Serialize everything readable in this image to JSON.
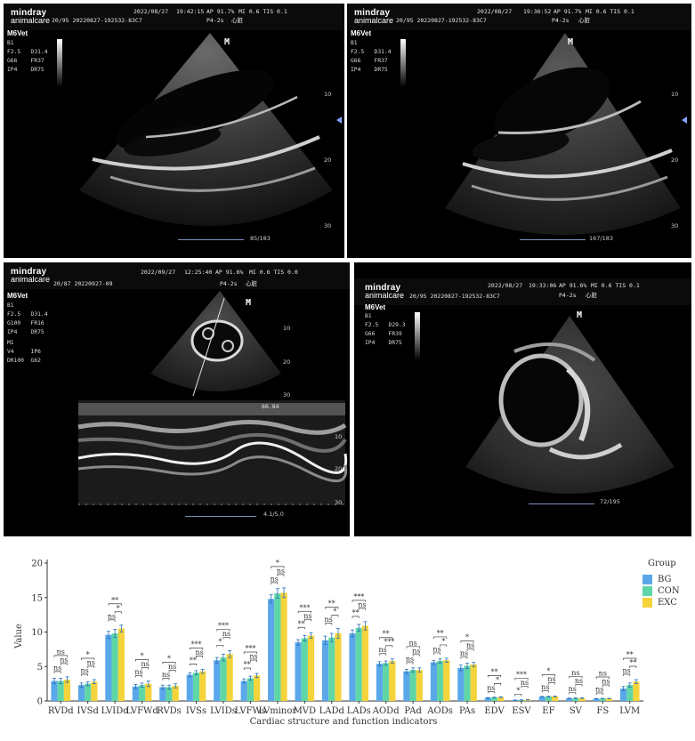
{
  "panels": [
    {
      "id": "A",
      "brand_top": "mindray",
      "brand_bottom": "animalcare",
      "header_id": "20/95 20220827-192532-83C7",
      "date": "2022/08/27",
      "time": "19:42:15",
      "power": "AP 91.7%",
      "indices": "MI 0.6 TIS 0.1",
      "probe": "P4-2s",
      "mode": "心脏",
      "app": "M6Vet",
      "mode_label": "B1",
      "params": [
        "F2.5   D31.4",
        "G66    FR37",
        "IP4    DR75"
      ],
      "counter": "85/183",
      "depths": [
        "10",
        "20",
        "30"
      ],
      "marker": "M"
    },
    {
      "id": "B",
      "brand_top": "mindray",
      "brand_bottom": "animalcare",
      "header_id": "20/95 20220827-192532-83C7",
      "date": "2022/08/27",
      "time": "19:36:52",
      "power": "AP 91.7%",
      "indices": "MI 0.6 TIS 0.1",
      "probe": "P4-2s",
      "mode": "心脏",
      "app": "M6Vet",
      "mode_label": "B1",
      "params": [
        "F2.5   D31.4",
        "G66    FR37",
        "IP4    DR75"
      ],
      "counter": "167/183",
      "depths": [
        "10",
        "20",
        "30"
      ],
      "marker": "M"
    },
    {
      "id": "C",
      "brand_top": "mindray",
      "brand_bottom": "animalcare",
      "header_id": "20/87 20220927-09",
      "date": "2022/09/27",
      "time": "12:25:40",
      "power": "AP 91.6%",
      "indices": "MI 0.6 TIS 0.0",
      "probe": "P4-2s",
      "mode": "心脏",
      "app": "M6Vet",
      "mode_label": "B1",
      "params": [
        "F2.5   D31.4",
        "G100   FR16",
        "IP4    DR75"
      ],
      "mm_label": "M1",
      "mm_params": [
        "V4     IP6",
        "DR100  G62"
      ],
      "counter": "4.1/5.0",
      "depths": [
        "10",
        "20",
        "30"
      ],
      "mm_depths": [
        "10",
        "20",
        "30"
      ],
      "sweep_readout": "66.84",
      "marker": "M"
    },
    {
      "id": "D",
      "brand_top": "mindray",
      "brand_bottom": "animalcare",
      "header_id": "20/95 20220827-192532-83C7",
      "date": "2022/08/27",
      "time": "19:33:06",
      "power": "AP 91.6%",
      "indices": "MI 0.6 TIS 0.1",
      "probe": "P4-2s",
      "mode": "心脏",
      "app": "M6Vet",
      "mode_label": "B1",
      "params": [
        "F2.5   D29.3",
        "G66    FR39",
        "IP4    DR75"
      ],
      "counter": "72/195",
      "marker": "M"
    }
  ],
  "chart_data": {
    "type": "bar",
    "title": "",
    "xlabel": "Cardiac structure and function indicators",
    "ylabel": "Value",
    "ylim": [
      0,
      20
    ],
    "yticks": [
      0,
      5,
      10,
      15,
      20
    ],
    "legend_title": "Group",
    "legend_position": "top-right",
    "categories": [
      "RVDd",
      "IVSd",
      "LVIDd",
      "LVFWd",
      "RVDs",
      "IVSs",
      "LVIDs",
      "LVFWs",
      "LVminor",
      "MVD",
      "LADd",
      "LADs",
      "AODd",
      "PAd",
      "AODs",
      "PAs",
      "EDV",
      "ESV",
      "EF",
      "SV",
      "FS",
      "LVM"
    ],
    "series": [
      {
        "name": "BG",
        "color": "#5aa7ea",
        "values": [
          2.9,
          2.3,
          9.6,
          2.1,
          2.0,
          3.8,
          5.9,
          2.9,
          14.8,
          8.5,
          8.8,
          9.8,
          5.4,
          4.3,
          5.6,
          4.8,
          0.45,
          0.12,
          0.62,
          0.38,
          0.33,
          1.8
        ],
        "errors": [
          0.4,
          0.3,
          0.5,
          0.3,
          0.3,
          0.3,
          0.4,
          0.3,
          0.6,
          0.4,
          0.6,
          0.5,
          0.3,
          0.3,
          0.3,
          0.4,
          0.05,
          0.03,
          0.05,
          0.04,
          0.03,
          0.3
        ]
      },
      {
        "name": "CON",
        "color": "#5fd6a6",
        "values": [
          2.9,
          2.5,
          9.8,
          2.3,
          2.0,
          4.1,
          6.3,
          3.3,
          15.6,
          9.1,
          9.2,
          10.6,
          5.5,
          4.5,
          5.8,
          5.1,
          0.5,
          0.14,
          0.64,
          0.4,
          0.34,
          2.3
        ],
        "errors": [
          0.4,
          0.3,
          0.6,
          0.3,
          0.3,
          0.3,
          0.5,
          0.3,
          0.7,
          0.4,
          0.6,
          0.5,
          0.3,
          0.3,
          0.3,
          0.4,
          0.05,
          0.03,
          0.05,
          0.04,
          0.03,
          0.3
        ]
      },
      {
        "name": "EXC",
        "color": "#f4d33b",
        "values": [
          3.1,
          2.8,
          10.5,
          2.5,
          2.2,
          4.3,
          6.8,
          3.7,
          15.7,
          9.5,
          9.8,
          10.9,
          5.8,
          4.5,
          5.9,
          5.3,
          0.55,
          0.17,
          0.66,
          0.42,
          0.36,
          2.8
        ],
        "errors": [
          0.4,
          0.3,
          0.5,
          0.4,
          0.3,
          0.3,
          0.5,
          0.3,
          0.7,
          0.4,
          0.7,
          0.6,
          0.3,
          0.3,
          0.3,
          0.3,
          0.05,
          0.03,
          0.05,
          0.04,
          0.03,
          0.3
        ]
      }
    ],
    "significance": [
      [
        "ns",
        "ns",
        "ns"
      ],
      [
        "ns",
        "*",
        "ns"
      ],
      [
        "ns",
        "**",
        "*"
      ],
      [
        "ns",
        "*",
        "ns"
      ],
      [
        "ns",
        "*",
        "ns"
      ],
      [
        "**",
        "***",
        "ns"
      ],
      [
        "*",
        "***",
        "ns"
      ],
      [
        "**",
        "***",
        "ns"
      ],
      [
        "ns",
        "*",
        "ns"
      ],
      [
        "**",
        "***",
        "ns"
      ],
      [
        "ns",
        "**",
        "*"
      ],
      [
        "**",
        "***",
        "ns"
      ],
      [
        "ns",
        "**",
        "***"
      ],
      [
        "ns",
        "ns",
        "ns"
      ],
      [
        "ns",
        "**",
        "*"
      ],
      [
        "ns",
        "*",
        "ns"
      ],
      [
        "ns",
        "**",
        "*"
      ],
      [
        "*",
        "***",
        "ns"
      ],
      [
        "ns",
        "*",
        "ns"
      ],
      [
        "ns",
        "ns",
        "ns"
      ],
      [
        "ns",
        "ns",
        "ns"
      ],
      [
        "ns",
        "**",
        "**"
      ]
    ]
  }
}
